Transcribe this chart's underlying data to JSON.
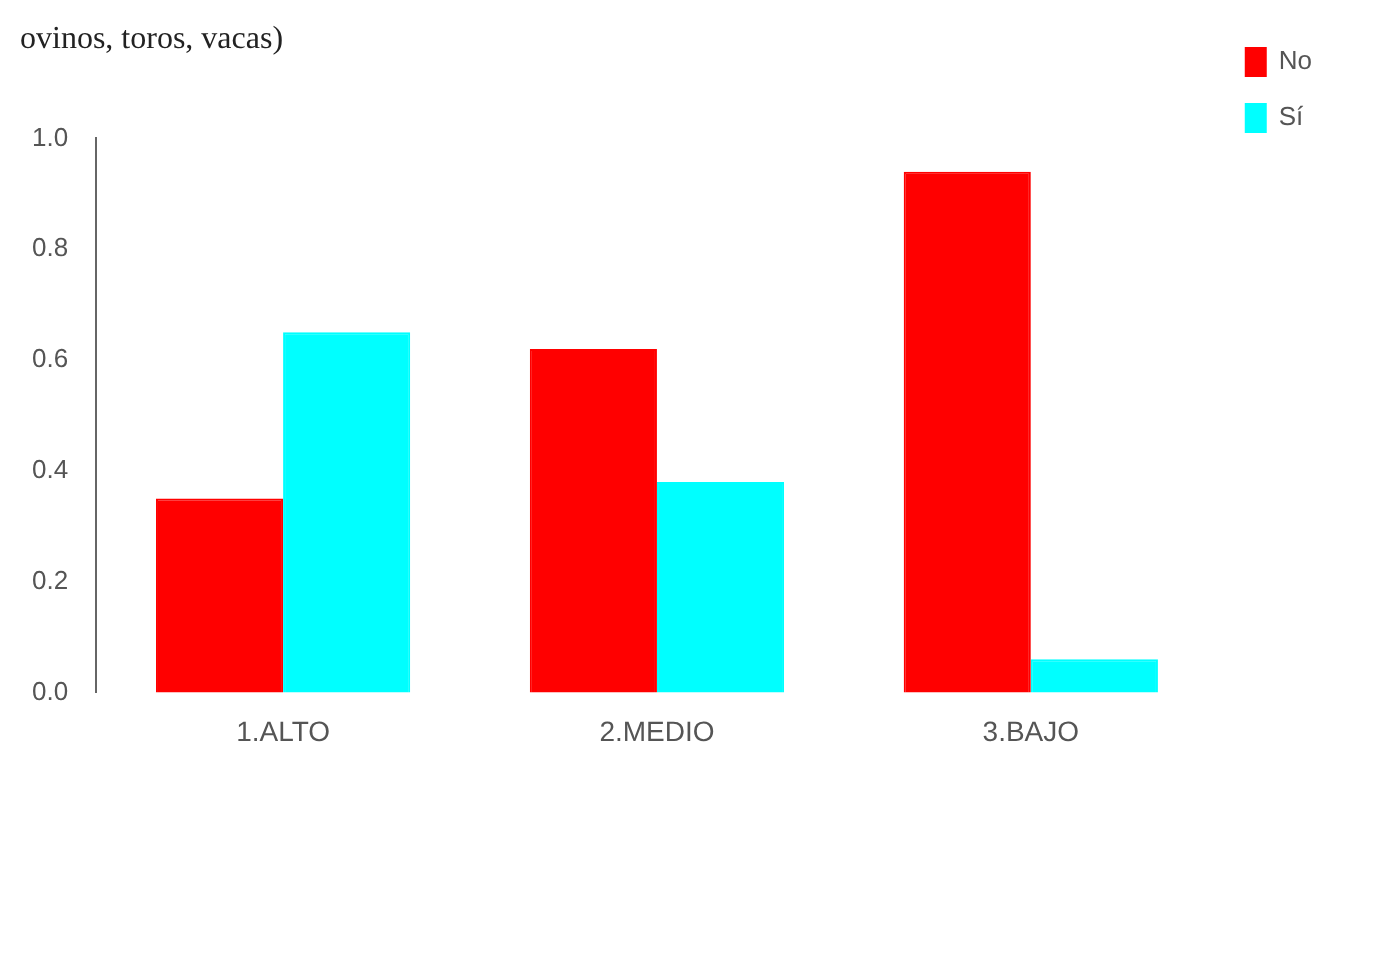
{
  "chart_data": {
    "type": "bar",
    "title": "ovinos, toros, vacas)",
    "categories": [
      "1.ALTO",
      "2.MEDIO",
      "3.BAJO"
    ],
    "series": [
      {
        "name": "No",
        "color": "#ff0000",
        "values": [
          0.35,
          0.62,
          0.94
        ]
      },
      {
        "name": "Sí",
        "color": "#00ffff",
        "values": [
          0.65,
          0.38,
          0.06
        ]
      }
    ],
    "ylim": [
      0,
      1
    ],
    "yticks": [
      {
        "value": 0,
        "label": "0.0"
      },
      {
        "value": 0.2,
        "label": "0.2"
      },
      {
        "value": 0.4,
        "label": "0.4"
      },
      {
        "value": 0.6,
        "label": "0.6"
      },
      {
        "value": 0.8,
        "label": "0.8"
      },
      {
        "value": 1,
        "label": "1.0"
      }
    ],
    "grid": false,
    "legend": "top right"
  }
}
